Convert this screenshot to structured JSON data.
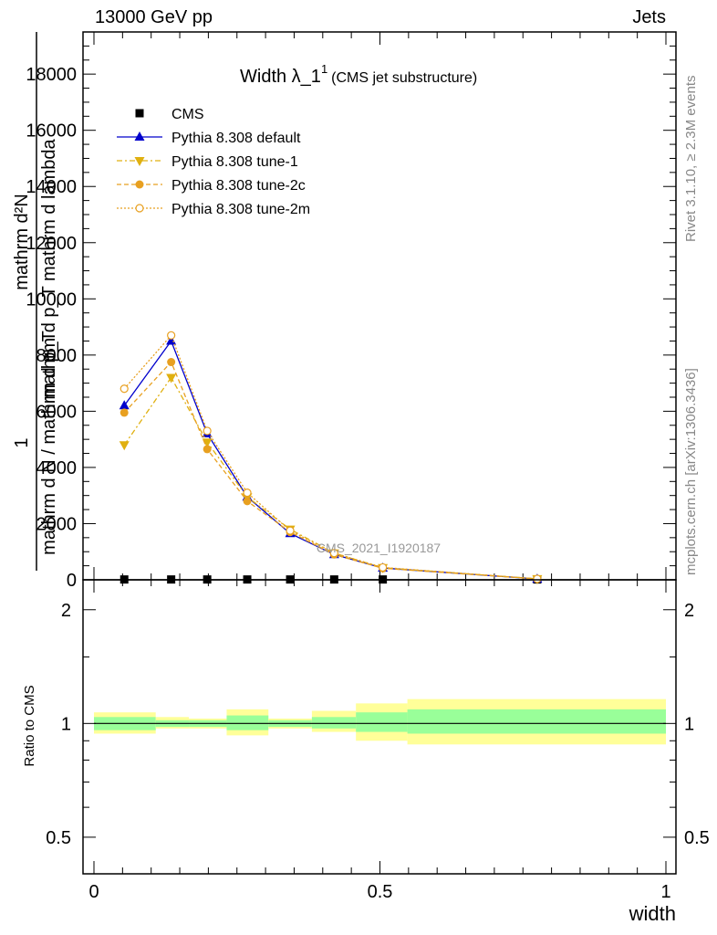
{
  "header": {
    "left": "13000 GeV pp",
    "right": "Jets"
  },
  "plot": {
    "title_main": "Width λ_1",
    "title_sup": "1",
    "title_sub": "(CMS jet substructure)",
    "ylabel_top": "mathrm d²N",
    "ylabel_bottom": "mathrm d p_T mathrm d lambda",
    "ylabel_one": "1",
    "ylabel_frac": "mathrm d N / mathrm d p_T",
    "ylabel_den": "mathrm d N",
    "xlabel": "width",
    "ratio_ylabel": "Ratio to CMS",
    "watermark": "CMS_2021_I1920187",
    "side_right_top": "Rivet 3.1.10, ≥ 2.3M events",
    "side_right_bottom": "mcplots.cern.ch [arXiv:1306.3436]"
  },
  "legend": [
    {
      "label": "CMS",
      "color": "#000000",
      "marker": "square",
      "dash": ""
    },
    {
      "label": "Pythia 8.308 default",
      "color": "#0000cc",
      "marker": "triangle-up",
      "dash": ""
    },
    {
      "label": "Pythia 8.308 tune-1",
      "color": "#e0b010",
      "marker": "triangle-down",
      "dash": "6,3,2,3"
    },
    {
      "label": "Pythia 8.308 tune-2c",
      "color": "#e8a020",
      "marker": "circle",
      "dash": "5,3"
    },
    {
      "label": "Pythia 8.308 tune-2m",
      "color": "#e8a020",
      "marker": "circle-open",
      "dash": "2,2"
    }
  ],
  "chart_data": {
    "type": "line",
    "xlim": [
      0,
      1
    ],
    "ylim": [
      0,
      19500
    ],
    "y_ticks": [
      0,
      2000,
      4000,
      6000,
      8000,
      10000,
      12000,
      14000,
      16000,
      18000
    ],
    "y_tick_labels": [
      "0",
      "2000",
      "4000",
      "6000",
      "8000",
      "10000",
      "12000",
      "14000",
      "16000",
      "18000"
    ],
    "x_ticks": [
      0,
      0.5,
      1
    ],
    "x_tick_labels": [
      "0",
      "0.5",
      "1"
    ],
    "x": [
      0.053,
      0.135,
      0.198,
      0.268,
      0.343,
      0.42,
      0.505,
      0.775
    ],
    "series": [
      {
        "name": "CMS",
        "values": [
          12,
          12,
          12,
          12,
          12,
          12,
          12,
          12
        ]
      },
      {
        "name": "Pythia 8.308 default",
        "values": [
          6200,
          8500,
          5200,
          2950,
          1650,
          900,
          420,
          30
        ]
      },
      {
        "name": "Pythia 8.308 tune-1",
        "values": [
          4800,
          7200,
          4900,
          2950,
          1800,
          950,
          430,
          35
        ]
      },
      {
        "name": "Pythia 8.308 tune-2c",
        "values": [
          5950,
          7750,
          4650,
          2800,
          1700,
          900,
          410,
          30
        ]
      },
      {
        "name": "Pythia 8.308 tune-2m",
        "values": [
          6800,
          8700,
          5300,
          3100,
          1750,
          950,
          440,
          35
        ]
      }
    ],
    "ratio": {
      "ylim": [
        0.4,
        2.4
      ],
      "y_ticks": [
        0.5,
        1,
        2
      ],
      "y_tick_labels": [
        "0.5",
        "1",
        "2"
      ],
      "bin_edges": [
        0,
        0.108,
        0.166,
        0.232,
        0.305,
        0.381,
        0.458,
        0.548,
        1.0
      ],
      "band_inner": [
        [
          0.96,
          1.04
        ],
        [
          0.98,
          1.02
        ],
        [
          0.98,
          1.02
        ],
        [
          0.96,
          1.05
        ],
        [
          0.98,
          1.02
        ],
        [
          0.97,
          1.04
        ],
        [
          0.95,
          1.07
        ],
        [
          0.94,
          1.09
        ]
      ],
      "band_outer": [
        [
          0.94,
          1.07
        ],
        [
          0.97,
          1.04
        ],
        [
          0.97,
          1.03
        ],
        [
          0.93,
          1.09
        ],
        [
          0.97,
          1.03
        ],
        [
          0.95,
          1.08
        ],
        [
          0.9,
          1.13
        ],
        [
          0.88,
          1.16
        ]
      ],
      "reference": 1
    }
  }
}
